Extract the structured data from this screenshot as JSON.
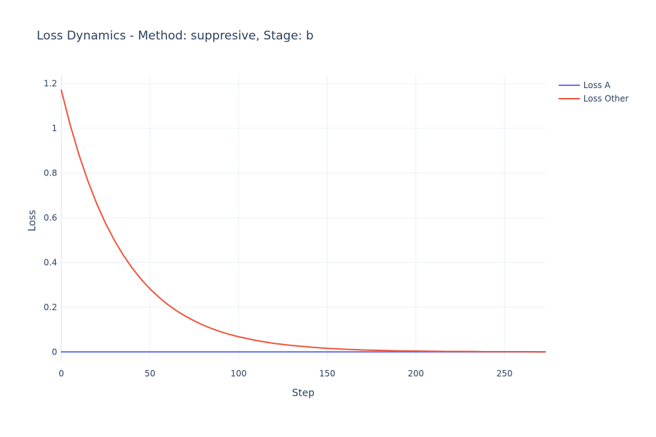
{
  "chart_data": {
    "type": "line",
    "title": "Loss Dynamics - Method: suppresive, Stage: b",
    "xlabel": "Step",
    "ylabel": "Loss",
    "xlim": [
      0,
      273
    ],
    "ylim": [
      -0.04,
      1.24
    ],
    "xticks": [
      0,
      50,
      100,
      150,
      200,
      250
    ],
    "yticks": [
      0,
      0.2,
      0.4,
      0.6,
      0.8,
      1,
      1.2
    ],
    "ytick_labels": [
      "0",
      "0.2",
      "0.4",
      "0.6",
      "0.8",
      "1",
      "1.2"
    ],
    "xtick_labels": [
      "0",
      "50",
      "100",
      "150",
      "200",
      "250"
    ],
    "grid": true,
    "legend_position": "top-right",
    "series": [
      {
        "name": "Loss A",
        "color": "#636efa",
        "x": [
          0,
          273
        ],
        "y": [
          0,
          0
        ]
      },
      {
        "name": "Loss Other",
        "color": "#ef553b",
        "x": [
          0,
          5,
          10,
          15,
          20,
          25,
          30,
          35,
          40,
          45,
          50,
          55,
          60,
          65,
          70,
          75,
          80,
          85,
          90,
          95,
          100,
          110,
          120,
          130,
          140,
          150,
          160,
          170,
          180,
          190,
          200,
          210,
          220,
          230,
          240,
          250,
          260,
          273
        ],
        "y": [
          1.17,
          1.015,
          0.88,
          0.764,
          0.662,
          0.574,
          0.498,
          0.432,
          0.375,
          0.325,
          0.282,
          0.245,
          0.212,
          0.184,
          0.16,
          0.139,
          0.12,
          0.104,
          0.09,
          0.078,
          0.068,
          0.051,
          0.038,
          0.029,
          0.022,
          0.016,
          0.012,
          0.009,
          0.007,
          0.005,
          0.004,
          0.003,
          0.002,
          0.002,
          0.001,
          0.001,
          0.001,
          0.0
        ]
      }
    ]
  }
}
